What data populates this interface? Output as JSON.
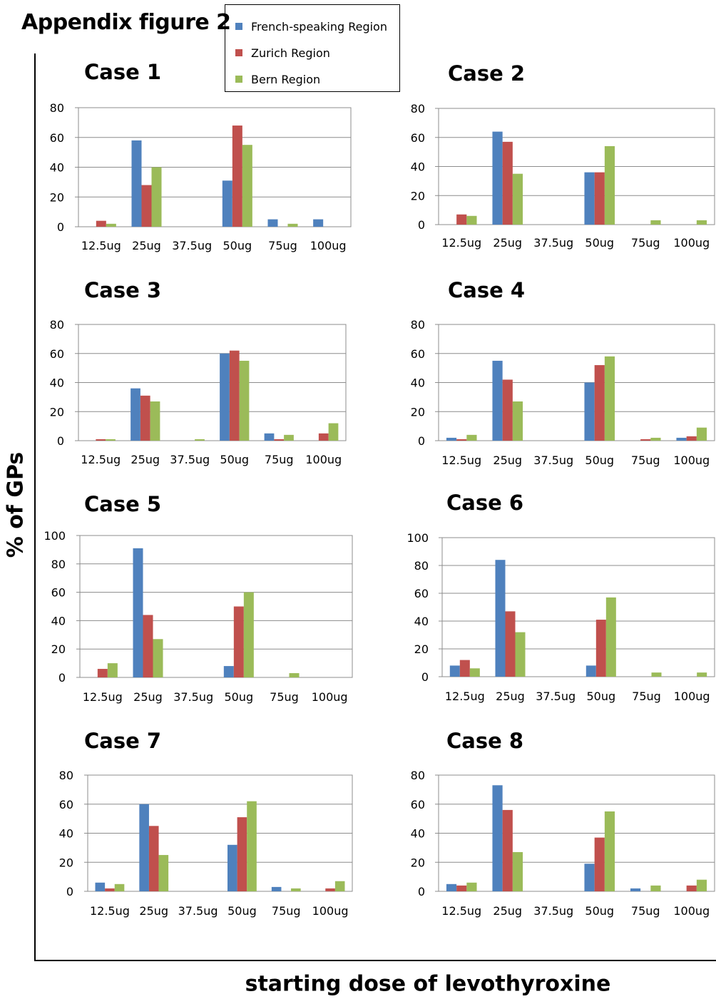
{
  "figure_title": "Appendix figure 2",
  "y_axis_title": "% of GPs",
  "x_axis_title": "starting dose of levothyroxine",
  "legend": [
    {
      "label": "French-speaking Region",
      "color": "#4f81bd"
    },
    {
      "label": "Zurich Region",
      "color": "#c0504d"
    },
    {
      "label": "Bern Region",
      "color": "#9bbb59"
    }
  ],
  "chart_data": [
    {
      "type": "bar",
      "title": "Case 1",
      "categories": [
        "12.5ug",
        "25ug",
        "37.5ug",
        "50ug",
        "75ug",
        "100ug"
      ],
      "ylim": [
        0,
        80
      ],
      "yticks": [
        "0",
        "20",
        "40",
        "60",
        "80"
      ],
      "series": [
        {
          "name": "French-speaking Region",
          "values": [
            0,
            58,
            0,
            31,
            5,
            5
          ]
        },
        {
          "name": "Zurich Region",
          "values": [
            4,
            28,
            0,
            68,
            0,
            0
          ]
        },
        {
          "name": "Bern Region",
          "values": [
            2,
            40,
            0,
            55,
            2,
            0
          ]
        }
      ]
    },
    {
      "type": "bar",
      "title": "Case 2",
      "categories": [
        "12.5ug",
        "25ug",
        "37.5ug",
        "50ug",
        "75ug",
        "100ug"
      ],
      "ylim": [
        0,
        80
      ],
      "yticks": [
        "0",
        "20",
        "40",
        "60",
        "80"
      ],
      "series": [
        {
          "name": "French-speaking Region",
          "values": [
            0,
            64,
            0,
            36,
            0,
            0
          ]
        },
        {
          "name": "Zurich Region",
          "values": [
            7,
            57,
            0,
            36,
            0,
            0
          ]
        },
        {
          "name": "Bern Region",
          "values": [
            6,
            35,
            0,
            54,
            3,
            3
          ]
        }
      ]
    },
    {
      "type": "bar",
      "title": "Case 3",
      "categories": [
        "12.5ug",
        "25ug",
        "37.5ug",
        "50ug",
        "75ug",
        "100ug"
      ],
      "ylim": [
        0,
        80
      ],
      "yticks": [
        "0",
        "20",
        "40",
        "60",
        "80"
      ],
      "series": [
        {
          "name": "French-speaking Region",
          "values": [
            0,
            36,
            0,
            60,
            5,
            0
          ]
        },
        {
          "name": "Zurich Region",
          "values": [
            1,
            31,
            0,
            62,
            1,
            5
          ]
        },
        {
          "name": "Bern Region",
          "values": [
            1,
            27,
            1,
            55,
            4,
            12
          ]
        }
      ]
    },
    {
      "type": "bar",
      "title": "Case 4",
      "categories": [
        "12.5ug",
        "25ug",
        "37.5ug",
        "50ug",
        "75ug",
        "100ug"
      ],
      "ylim": [
        0,
        80
      ],
      "yticks": [
        "0",
        "20",
        "40",
        "60",
        "80"
      ],
      "series": [
        {
          "name": "French-speaking Region",
          "values": [
            2,
            55,
            0,
            40,
            0,
            2
          ]
        },
        {
          "name": "Zurich Region",
          "values": [
            1,
            42,
            0,
            52,
            1,
            3
          ]
        },
        {
          "name": "Bern Region",
          "values": [
            4,
            27,
            0,
            58,
            2,
            9
          ]
        }
      ]
    },
    {
      "type": "bar",
      "title": "Case 5",
      "categories": [
        "12.5ug",
        "25ug",
        "37.5ug",
        "50ug",
        "75ug",
        "100ug"
      ],
      "ylim": [
        0,
        100
      ],
      "yticks": [
        "0",
        "20",
        "40",
        "60",
        "80",
        "100"
      ],
      "series": [
        {
          "name": "French-speaking Region",
          "values": [
            0,
            91,
            0,
            8,
            0,
            0
          ]
        },
        {
          "name": "Zurich Region",
          "values": [
            6,
            44,
            0,
            50,
            0,
            0
          ]
        },
        {
          "name": "Bern Region",
          "values": [
            10,
            27,
            0,
            60,
            3,
            0
          ]
        }
      ]
    },
    {
      "type": "bar",
      "title": "Case 6",
      "categories": [
        "12.5ug",
        "25ug",
        "37.5ug",
        "50ug",
        "75ug",
        "100ug"
      ],
      "ylim": [
        0,
        100
      ],
      "yticks": [
        "0",
        "20",
        "40",
        "60",
        "80",
        "100"
      ],
      "series": [
        {
          "name": "French-speaking Region",
          "values": [
            8,
            84,
            0,
            8,
            0,
            0
          ]
        },
        {
          "name": "Zurich Region",
          "values": [
            12,
            47,
            0,
            41,
            0,
            0
          ]
        },
        {
          "name": "Bern Region",
          "values": [
            6,
            32,
            0,
            57,
            3,
            3
          ]
        }
      ]
    },
    {
      "type": "bar",
      "title": "Case 7",
      "categories": [
        "12.5ug",
        "25ug",
        "37.5ug",
        "50ug",
        "75ug",
        "100ug"
      ],
      "ylim": [
        0,
        80
      ],
      "yticks": [
        "0",
        "20",
        "40",
        "60",
        "80"
      ],
      "series": [
        {
          "name": "French-speaking Region",
          "values": [
            6,
            60,
            0,
            32,
            3,
            0
          ]
        },
        {
          "name": "Zurich Region",
          "values": [
            2,
            45,
            0,
            51,
            0,
            2
          ]
        },
        {
          "name": "Bern Region",
          "values": [
            5,
            25,
            0,
            62,
            2,
            7
          ]
        }
      ]
    },
    {
      "type": "bar",
      "title": "Case 8",
      "categories": [
        "12.5ug",
        "25ug",
        "37.5ug",
        "50ug",
        "75ug",
        "100ug"
      ],
      "ylim": [
        0,
        80
      ],
      "yticks": [
        "0",
        "20",
        "40",
        "60",
        "80"
      ],
      "series": [
        {
          "name": "French-speaking Region",
          "values": [
            5,
            73,
            0,
            19,
            2,
            0
          ]
        },
        {
          "name": "Zurich Region",
          "values": [
            4,
            56,
            0,
            37,
            0,
            4
          ]
        },
        {
          "name": "Bern Region",
          "values": [
            6,
            27,
            0,
            55,
            4,
            8
          ]
        }
      ]
    }
  ]
}
